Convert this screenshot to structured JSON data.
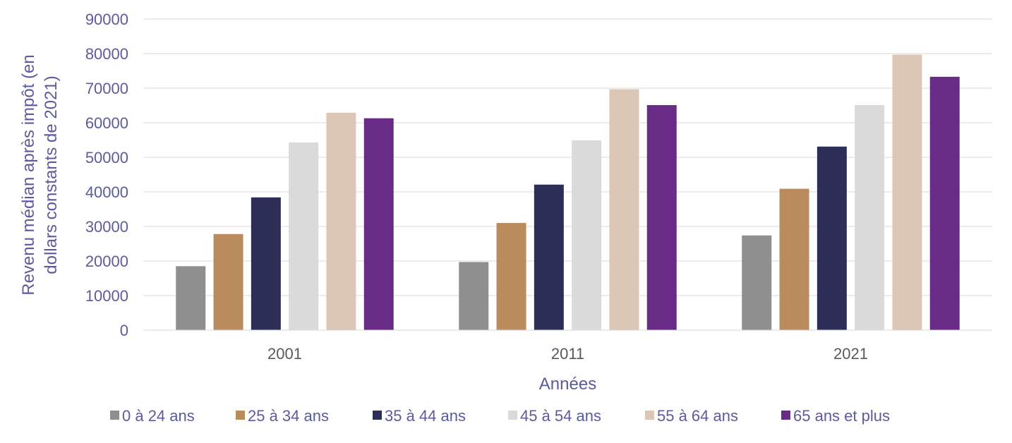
{
  "chart_data": {
    "type": "bar",
    "title": "",
    "xlabel": "Années",
    "ylabel_lines": [
      "Revenu médian après impôt (en",
      "dollars constants de 2021)"
    ],
    "categories": [
      "2001",
      "2011",
      "2021"
    ],
    "ylim": [
      0,
      90000
    ],
    "yticks": [
      "0",
      "10000",
      "20000",
      "30000",
      "40000",
      "50000",
      "60000",
      "70000",
      "80000",
      "90000"
    ],
    "grid": true,
    "legend_position": "bottom",
    "series": [
      {
        "name": "0 à 24 ans",
        "color": "#8f8f8f",
        "values": [
          18500,
          19700,
          27400
        ]
      },
      {
        "name": "25 à 34 ans",
        "color": "#ba8b5c",
        "values": [
          27800,
          31000,
          40900
        ]
      },
      {
        "name": "35 à 44 ans",
        "color": "#2d2e58",
        "values": [
          38400,
          42100,
          53100
        ]
      },
      {
        "name": "45 à 54 ans",
        "color": "#dadada",
        "values": [
          54300,
          54900,
          65100
        ]
      },
      {
        "name": "55 à 64 ans",
        "color": "#dcc6b6",
        "values": [
          62900,
          69700,
          79700
        ]
      },
      {
        "name": "65 ans et plus",
        "color": "#682c86",
        "values": [
          61300,
          65100,
          73300
        ]
      }
    ]
  }
}
